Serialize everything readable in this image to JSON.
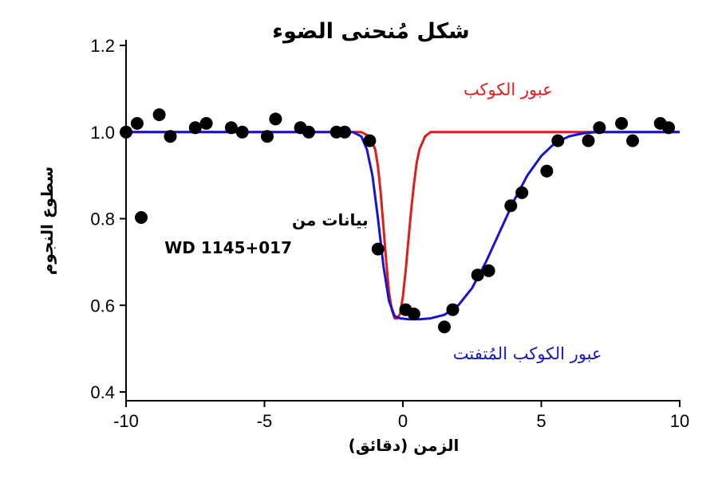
{
  "chart_data": {
    "type": "scatter",
    "title": "شكل مُنحنى الضوء",
    "xlabel": "الزمن (دقائق)",
    "ylabel": "سطوع النجوم",
    "xlim": [
      -10,
      10
    ],
    "ylim": [
      0.4,
      1.2
    ],
    "x_ticks": [
      "-10",
      "-5",
      "0",
      "5",
      "10"
    ],
    "y_ticks": [
      "0.4",
      "0.6",
      "0.8",
      "1.0",
      "1.2"
    ],
    "grid": false,
    "legend": {
      "position": "left",
      "entries": [
        {
          "label_line1": "بيانات من",
          "label_line2": "WD 1145+017",
          "marker": "black-dot"
        }
      ]
    },
    "colors": {
      "data": "#000000",
      "planet_transit": "#e01b1b",
      "disintegrating_transit": "#1414d2",
      "axes": "#000000"
    },
    "series": [
      {
        "name": "بيانات من WD 1145+017",
        "kind": "points",
        "points": [
          [
            -10.0,
            1.0
          ],
          [
            -9.6,
            1.02
          ],
          [
            -8.8,
            1.04
          ],
          [
            -8.4,
            0.99
          ],
          [
            -7.5,
            1.01
          ],
          [
            -7.1,
            1.02
          ],
          [
            -6.2,
            1.01
          ],
          [
            -5.8,
            1.0
          ],
          [
            -4.9,
            0.99
          ],
          [
            -4.6,
            1.03
          ],
          [
            -3.7,
            1.01
          ],
          [
            -3.4,
            1.0
          ],
          [
            -2.4,
            1.0
          ],
          [
            -2.1,
            1.0
          ],
          [
            -1.2,
            0.98
          ],
          [
            -0.9,
            0.73
          ],
          [
            0.1,
            0.59
          ],
          [
            0.4,
            0.58
          ],
          [
            1.5,
            0.55
          ],
          [
            1.8,
            0.59
          ],
          [
            2.7,
            0.67
          ],
          [
            3.1,
            0.68
          ],
          [
            3.9,
            0.83
          ],
          [
            4.3,
            0.86
          ],
          [
            5.2,
            0.91
          ],
          [
            5.6,
            0.98
          ],
          [
            6.7,
            0.98
          ],
          [
            7.1,
            1.01
          ],
          [
            7.9,
            1.02
          ],
          [
            8.3,
            0.98
          ],
          [
            9.3,
            1.02
          ],
          [
            9.6,
            1.01
          ]
        ]
      },
      {
        "name": "عبور الكوكب",
        "kind": "line",
        "points": [
          [
            -10,
            1.0
          ],
          [
            -1.5,
            1.0
          ],
          [
            -1.2,
            0.99
          ],
          [
            -1.0,
            0.96
          ],
          [
            -0.9,
            0.92
          ],
          [
            -0.8,
            0.86
          ],
          [
            -0.7,
            0.78
          ],
          [
            -0.6,
            0.7
          ],
          [
            -0.5,
            0.63
          ],
          [
            -0.4,
            0.59
          ],
          [
            -0.3,
            0.57
          ],
          [
            -0.2,
            0.57
          ],
          [
            -0.1,
            0.58
          ],
          [
            0.0,
            0.62
          ],
          [
            0.1,
            0.68
          ],
          [
            0.2,
            0.75
          ],
          [
            0.3,
            0.82
          ],
          [
            0.4,
            0.88
          ],
          [
            0.5,
            0.93
          ],
          [
            0.6,
            0.96
          ],
          [
            0.8,
            0.99
          ],
          [
            1.0,
            1.0
          ],
          [
            10,
            1.0
          ]
        ]
      },
      {
        "name": "عبور الكوكب المُتفتت",
        "kind": "line",
        "points": [
          [
            -10,
            1.0
          ],
          [
            -1.8,
            1.0
          ],
          [
            -1.5,
            0.99
          ],
          [
            -1.3,
            0.96
          ],
          [
            -1.1,
            0.9
          ],
          [
            -0.9,
            0.8
          ],
          [
            -0.7,
            0.69
          ],
          [
            -0.5,
            0.61
          ],
          [
            -0.3,
            0.575
          ],
          [
            -0.1,
            0.57
          ],
          [
            0.2,
            0.568
          ],
          [
            0.6,
            0.568
          ],
          [
            1.0,
            0.57
          ],
          [
            1.5,
            0.578
          ],
          [
            2.0,
            0.6
          ],
          [
            2.5,
            0.64
          ],
          [
            3.0,
            0.7
          ],
          [
            3.5,
            0.77
          ],
          [
            4.0,
            0.84
          ],
          [
            4.5,
            0.9
          ],
          [
            5.0,
            0.945
          ],
          [
            5.5,
            0.975
          ],
          [
            6.0,
            0.99
          ],
          [
            6.5,
            0.997
          ],
          [
            7.0,
            1.0
          ],
          [
            10,
            1.0
          ]
        ]
      }
    ],
    "annotations": [
      {
        "text": "عبور الكوكب",
        "series": "عبور الكوكب",
        "color": "#e01b1b",
        "x": 3.8,
        "y": 1.085
      },
      {
        "text": "عبور الكوكب المُتفتت",
        "series": "عبور الكوكب المُتفتت",
        "color": "#1414d2",
        "x": 4.5,
        "y": 0.475
      }
    ]
  }
}
